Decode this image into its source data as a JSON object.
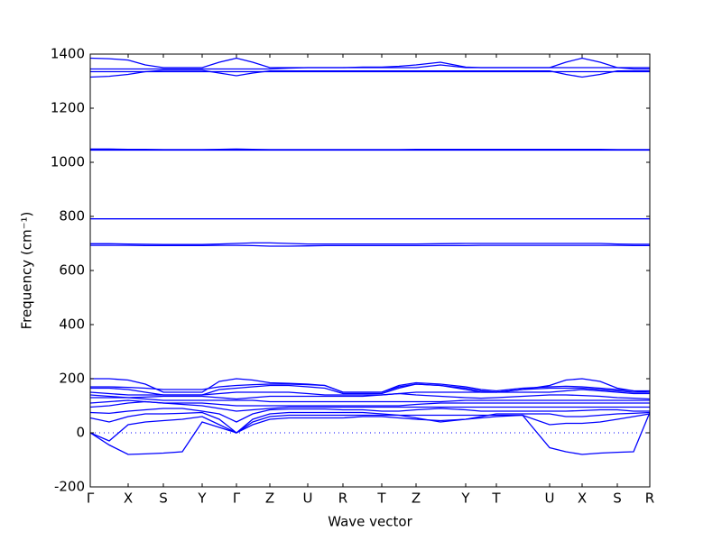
{
  "chart_data": {
    "type": "line",
    "xlabel": "Wave vector",
    "ylabel": "Frequency (cm⁻¹)",
    "xlim": [
      0,
      620
    ],
    "ylim": [
      -200,
      1400
    ],
    "yticks": [
      -200,
      0,
      200,
      400,
      600,
      800,
      1000,
      1200,
      1400
    ],
    "xticks": [
      {
        "value": 0,
        "label": "Γ"
      },
      {
        "value": 42,
        "label": "X"
      },
      {
        "value": 81,
        "label": "S"
      },
      {
        "value": 124,
        "label": "Y"
      },
      {
        "value": 162,
        "label": "Γ"
      },
      {
        "value": 199,
        "label": "Z"
      },
      {
        "value": 241,
        "label": "U"
      },
      {
        "value": 280,
        "label": "R"
      },
      {
        "value": 323,
        "label": "T"
      },
      {
        "value": 361,
        "label": "Z"
      },
      {
        "value": 416,
        "label": "Y"
      },
      {
        "value": 450,
        "label": "T"
      },
      {
        "value": 509,
        "label": "U"
      },
      {
        "value": 545,
        "label": "X"
      },
      {
        "value": 584,
        "label": "S"
      },
      {
        "value": 620,
        "label": "R"
      }
    ],
    "zero_line": true,
    "x": [
      0,
      21,
      42,
      61,
      81,
      102,
      124,
      143,
      162,
      180,
      199,
      220,
      241,
      260,
      280,
      302,
      323,
      342,
      361,
      388,
      416,
      433,
      450,
      479,
      509,
      527,
      545,
      565,
      584,
      602,
      620
    ],
    "series": [
      {
        "color": "#0000ff",
        "values": [
          1385,
          1383,
          1378,
          1360,
          1350,
          1350,
          1350,
          1370,
          1385,
          1370,
          1350,
          1350,
          1350,
          1350,
          1350,
          1352,
          1352,
          1355,
          1360,
          1370,
          1352,
          1350,
          1350,
          1350,
          1350,
          1370,
          1385,
          1370,
          1350,
          1350,
          1350
        ]
      },
      {
        "color": "#0000ff",
        "values": [
          1345,
          1345,
          1345,
          1345,
          1345,
          1345,
          1345,
          1345,
          1345,
          1345,
          1345,
          1348,
          1350,
          1350,
          1350,
          1350,
          1350,
          1350,
          1350,
          1360,
          1350,
          1350,
          1350,
          1350,
          1350,
          1350,
          1350,
          1350,
          1350,
          1345,
          1345
        ]
      },
      {
        "color": "#0000ff",
        "values": [
          1315,
          1318,
          1325,
          1335,
          1340,
          1340,
          1340,
          1330,
          1320,
          1330,
          1338,
          1338,
          1338,
          1338,
          1338,
          1338,
          1338,
          1338,
          1338,
          1338,
          1338,
          1338,
          1338,
          1338,
          1338,
          1325,
          1315,
          1325,
          1338,
          1338,
          1338
        ]
      },
      {
        "color": "#0000ff",
        "values": [
          1335,
          1335,
          1335,
          1335,
          1335,
          1335,
          1335,
          1335,
          1335,
          1335,
          1335,
          1335,
          1335,
          1335,
          1335,
          1335,
          1335,
          1335,
          1335,
          1335,
          1335,
          1335,
          1335,
          1335,
          1335,
          1335,
          1335,
          1335,
          1335,
          1335,
          1335
        ]
      },
      {
        "color": "#0000ff",
        "values": [
          1049,
          1049,
          1048,
          1048,
          1047,
          1047,
          1047,
          1048,
          1049,
          1048,
          1047,
          1047,
          1047,
          1047,
          1047,
          1047,
          1047,
          1047,
          1048,
          1048,
          1048,
          1048,
          1048,
          1048,
          1048,
          1048,
          1048,
          1048,
          1047,
          1047,
          1047
        ]
      },
      {
        "color": "#0000ff",
        "values": [
          1045,
          1045,
          1045,
          1045,
          1045,
          1045,
          1045,
          1045,
          1045,
          1045,
          1045,
          1045,
          1045,
          1045,
          1045,
          1045,
          1045,
          1045,
          1045,
          1045,
          1045,
          1045,
          1045,
          1045,
          1045,
          1045,
          1045,
          1045,
          1045,
          1045,
          1045
        ]
      },
      {
        "color": "#0000ff",
        "values": [
          791,
          791,
          791,
          791,
          791,
          791,
          791,
          791,
          791,
          791,
          791,
          791,
          791,
          791,
          791,
          791,
          791,
          791,
          791,
          791,
          791,
          791,
          791,
          791,
          791,
          791,
          791,
          791,
          791,
          791,
          791
        ]
      },
      {
        "color": "#0000ff",
        "values": [
          699,
          699,
          698,
          697,
          696,
          696,
          696,
          698,
          700,
          702,
          702,
          700,
          698,
          698,
          698,
          698,
          698,
          698,
          698,
          699,
          700,
          700,
          700,
          700,
          700,
          700,
          700,
          700,
          698,
          697,
          697
        ]
      },
      {
        "color": "#0000ff",
        "values": [
          693,
          693,
          693,
          692,
          692,
          692,
          692,
          693,
          693,
          692,
          690,
          690,
          691,
          692,
          692,
          692,
          692,
          692,
          692,
          692,
          692,
          693,
          693,
          693,
          693,
          693,
          693,
          693,
          693,
          692,
          692
        ]
      },
      {
        "color": "#0000ff",
        "values": [
          0,
          -45,
          -80,
          -78,
          -75,
          -70,
          40,
          20,
          0,
          40,
          60,
          65,
          65,
          65,
          65,
          65,
          65,
          65,
          65,
          65,
          65,
          65,
          65,
          65,
          -55,
          -70,
          -80,
          -75,
          -72,
          -70,
          75
        ]
      },
      {
        "color": "#0000ff",
        "values": [
          0,
          -30,
          30,
          40,
          45,
          50,
          60,
          30,
          0,
          30,
          50,
          55,
          55,
          55,
          55,
          60,
          60,
          55,
          50,
          45,
          50,
          55,
          60,
          65,
          30,
          35,
          35,
          40,
          50,
          60,
          70
        ]
      },
      {
        "color": "#0000ff",
        "values": [
          55,
          40,
          60,
          70,
          70,
          72,
          75,
          50,
          0,
          50,
          70,
          75,
          75,
          75,
          75,
          75,
          70,
          65,
          55,
          40,
          50,
          60,
          70,
          70,
          70,
          60,
          60,
          65,
          70,
          72,
          75
        ]
      },
      {
        "color": "#0000ff",
        "values": [
          75,
          72,
          80,
          85,
          90,
          90,
          80,
          70,
          40,
          70,
          85,
          88,
          88,
          88,
          85,
          85,
          80,
          80,
          85,
          90,
          85,
          80,
          80,
          80,
          80,
          80,
          82,
          85,
          85,
          80,
          80
        ]
      },
      {
        "color": "#0000ff",
        "values": [
          95,
          100,
          110,
          115,
          110,
          105,
          100,
          90,
          80,
          85,
          90,
          95,
          95,
          95,
          95,
          95,
          95,
          95,
          95,
          95,
          95,
          95,
          95,
          95,
          95,
          95,
          95,
          95,
          95,
          95,
          95
        ]
      },
      {
        "color": "#0000ff",
        "values": [
          110,
          115,
          120,
          115,
          110,
          110,
          110,
          105,
          100,
          100,
          100,
          100,
          100,
          100,
          100,
          100,
          100,
          100,
          105,
          110,
          110,
          110,
          110,
          110,
          110,
          110,
          110,
          110,
          110,
          110,
          110
        ]
      },
      {
        "color": "#0000ff",
        "values": [
          130,
          130,
          130,
          125,
          120,
          120,
          120,
          120,
          120,
          120,
          115,
          115,
          115,
          115,
          115,
          115,
          115,
          115,
          115,
          115,
          120,
          120,
          120,
          120,
          120,
          120,
          120,
          120,
          120,
          120,
          120
        ]
      },
      {
        "color": "#0000ff",
        "values": [
          140,
          135,
          130,
          132,
          135,
          135,
          135,
          130,
          125,
          130,
          135,
          135,
          135,
          135,
          135,
          135,
          140,
          145,
          140,
          135,
          130,
          128,
          130,
          135,
          140,
          140,
          138,
          135,
          130,
          128,
          125
        ]
      },
      {
        "color": "#0000ff",
        "values": [
          150,
          145,
          140,
          140,
          140,
          140,
          140,
          145,
          150,
          150,
          150,
          150,
          145,
          140,
          140,
          140,
          140,
          145,
          150,
          150,
          150,
          150,
          150,
          150,
          150,
          155,
          160,
          155,
          150,
          145,
          145
        ]
      },
      {
        "color": "#0000ff",
        "values": [
          165,
          165,
          160,
          150,
          140,
          140,
          140,
          160,
          165,
          170,
          175,
          175,
          170,
          165,
          145,
          145,
          145,
          165,
          180,
          175,
          165,
          155,
          150,
          160,
          165,
          165,
          165,
          160,
          155,
          150,
          150
        ]
      },
      {
        "color": "#0000ff",
        "values": [
          170,
          170,
          168,
          165,
          160,
          160,
          160,
          170,
          175,
          178,
          180,
          180,
          178,
          175,
          150,
          150,
          150,
          175,
          185,
          180,
          170,
          160,
          155,
          165,
          170,
          172,
          170,
          165,
          160,
          155,
          155
        ]
      },
      {
        "color": "#0000ff",
        "values": [
          200,
          200,
          195,
          180,
          150,
          150,
          150,
          190,
          200,
          195,
          185,
          183,
          180,
          175,
          150,
          150,
          150,
          170,
          180,
          175,
          160,
          150,
          150,
          160,
          175,
          195,
          200,
          190,
          165,
          155,
          150
        ]
      }
    ]
  }
}
